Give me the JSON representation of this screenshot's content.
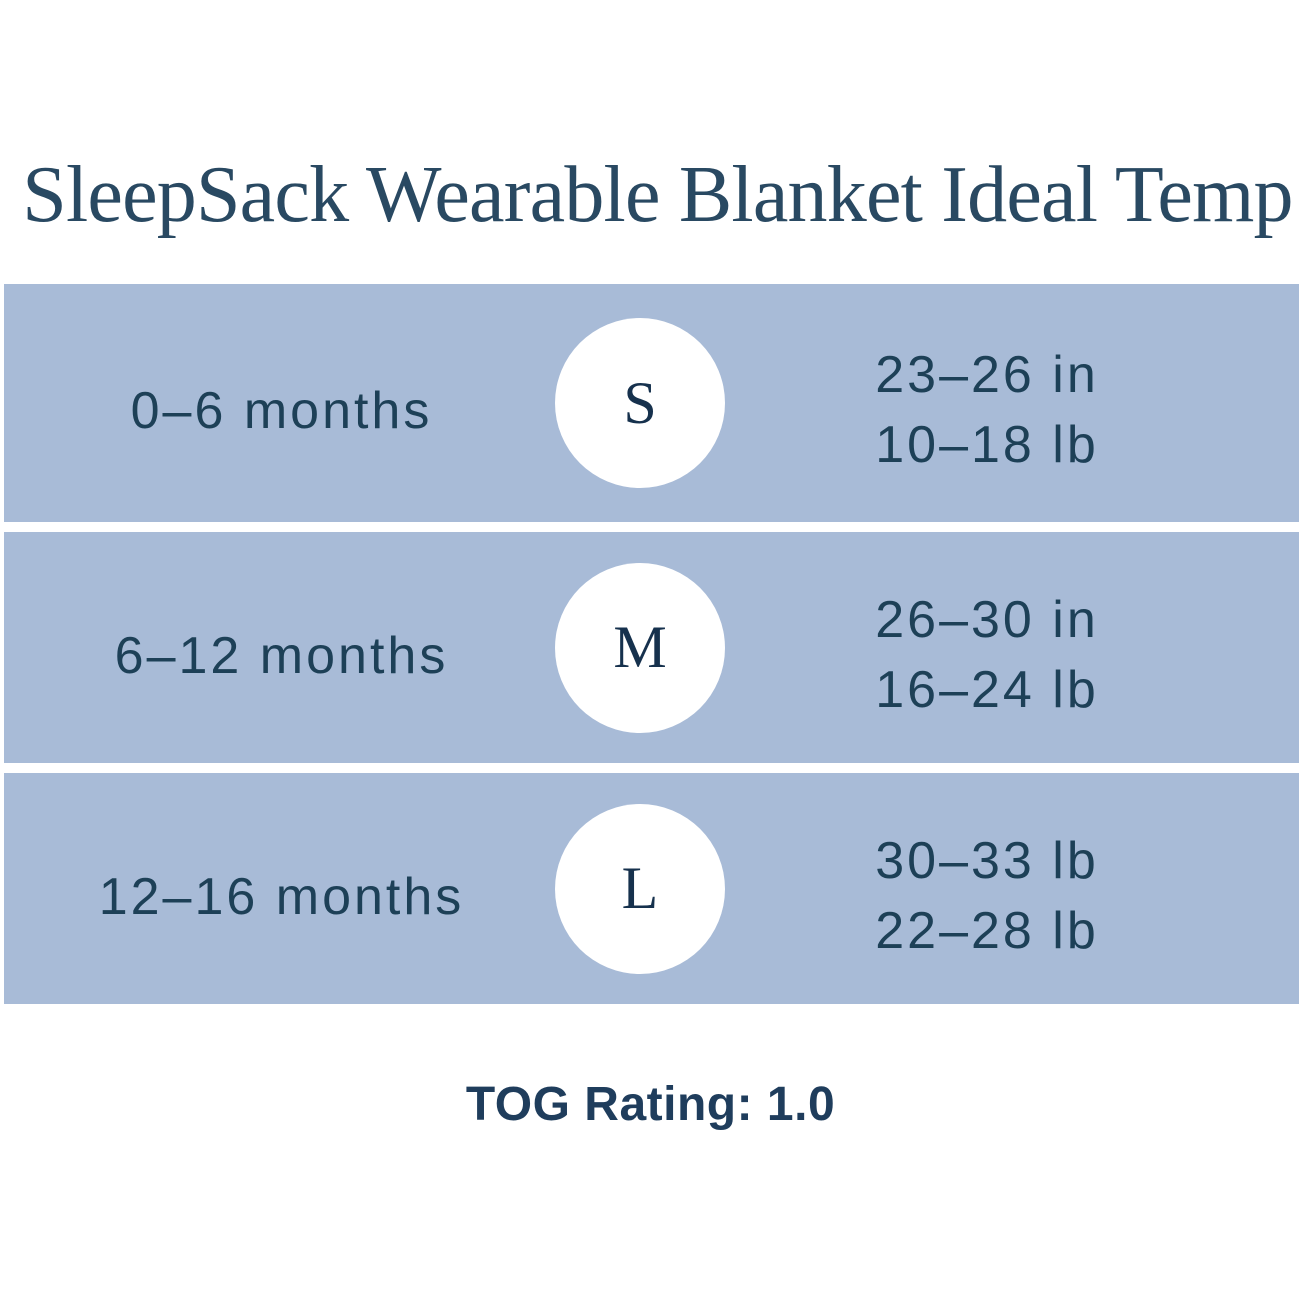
{
  "title": "SleepSack Wearable Blanket Ideal Temp",
  "rows": [
    {
      "age": "0–6 months",
      "size": "S",
      "line1": "23–26 in",
      "line2": "10–18 lb"
    },
    {
      "age": "6–12 months",
      "size": "M",
      "line1": "26–30 in",
      "line2": "16–24 lb"
    },
    {
      "age": "12–16 months",
      "size": "L",
      "line1": "30–33 lb",
      "line2": "22–28 lb"
    }
  ],
  "tog_rating": "TOG Rating: 1.0",
  "colors": {
    "band_blue": "#a8bbd7",
    "text_navy": "#1d4057",
    "title_navy": "#294962",
    "background": "#ffffff"
  }
}
